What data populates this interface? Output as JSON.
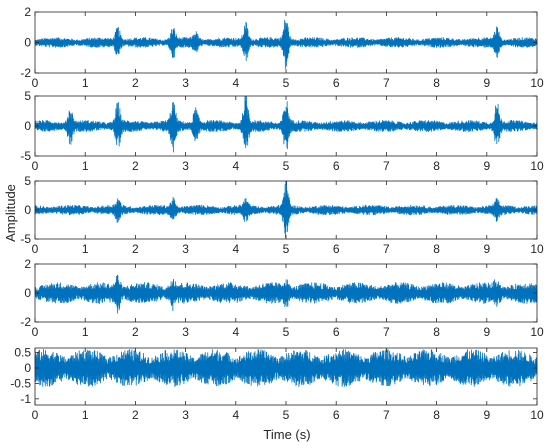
{
  "figure": {
    "ylabel": "Amplitude",
    "xlabel": "Time (s)"
  },
  "chart_data": {
    "type": "line",
    "xlim": [
      0,
      10
    ],
    "x_ticks": [
      0,
      1,
      2,
      3,
      4,
      5,
      6,
      7,
      8,
      9,
      10
    ],
    "x_tick_labels": [
      "0",
      "1",
      "2",
      "3",
      "4",
      "5",
      "6",
      "7",
      "8",
      "9",
      "10"
    ],
    "line_color": "#0072BD",
    "grid": false,
    "panels": [
      {
        "ylim": [
          -2,
          2
        ],
        "y_ticks": [
          -2,
          0,
          2
        ],
        "y_tick_labels": [
          "-2",
          "0",
          "2"
        ],
        "base_amplitude": 0.35,
        "bursts": [
          {
            "t": 1.65,
            "a": 0.9
          },
          {
            "t": 2.75,
            "a": 0.8
          },
          {
            "t": 3.2,
            "a": 0.5
          },
          {
            "t": 4.2,
            "a": 1.2
          },
          {
            "t": 5.0,
            "a": 1.6
          },
          {
            "t": 9.2,
            "a": 0.9
          }
        ]
      },
      {
        "ylim": [
          -5,
          5
        ],
        "y_ticks": [
          -5,
          0,
          5
        ],
        "y_tick_labels": [
          "-5",
          "0",
          "5"
        ],
        "base_amplitude": 1.0,
        "bursts": [
          {
            "t": 0.7,
            "a": 2.6
          },
          {
            "t": 1.65,
            "a": 3.3
          },
          {
            "t": 2.75,
            "a": 3.5
          },
          {
            "t": 3.2,
            "a": 2.6
          },
          {
            "t": 4.2,
            "a": 5.0
          },
          {
            "t": 5.0,
            "a": 4.0
          },
          {
            "t": 9.2,
            "a": 3.5
          }
        ]
      },
      {
        "ylim": [
          -5,
          5
        ],
        "y_ticks": [
          -5,
          0,
          5
        ],
        "y_tick_labels": [
          "-5",
          "0",
          "5"
        ],
        "base_amplitude": 0.9,
        "bursts": [
          {
            "t": 1.65,
            "a": 1.5
          },
          {
            "t": 2.75,
            "a": 1.6
          },
          {
            "t": 4.2,
            "a": 1.4
          },
          {
            "t": 5.0,
            "a": 4.6
          },
          {
            "t": 9.2,
            "a": 1.2
          }
        ]
      },
      {
        "ylim": [
          -2,
          2
        ],
        "y_ticks": [
          -2,
          0,
          2
        ],
        "y_tick_labels": [
          "-2",
          "0",
          "2"
        ],
        "base_amplitude": 0.75,
        "bursts": [
          {
            "t": 1.65,
            "a": 0.9
          },
          {
            "t": 2.75,
            "a": 0.7
          },
          {
            "t": 5.0,
            "a": 0.6
          },
          {
            "t": 9.2,
            "a": 0.5
          }
        ]
      },
      {
        "ylim": [
          -1.2,
          0.65
        ],
        "y_ticks": [
          -1,
          -0.5,
          0,
          0.5
        ],
        "y_tick_labels": [
          "-1",
          "-0.5",
          "0",
          "0.5"
        ],
        "base_amplitude": 0.62,
        "bursts": []
      }
    ]
  }
}
